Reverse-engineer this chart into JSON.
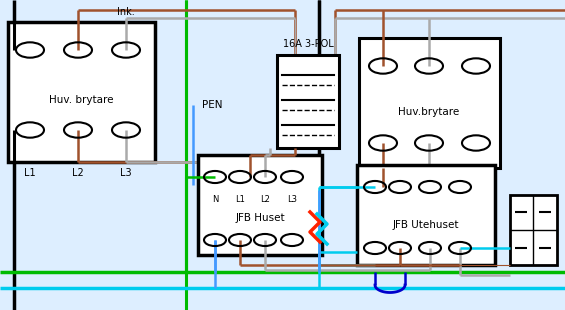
{
  "bg_color": "#ddeeff",
  "fig_w": 5.65,
  "fig_h": 3.1,
  "dpi": 100,
  "colors": {
    "black": "#000000",
    "brown": "#a0522d",
    "gray": "#aaaaaa",
    "green": "#00bb00",
    "blue": "#4499ff",
    "dark_blue": "#0000cc",
    "light_blue": "#00ccee",
    "red": "#ff2200",
    "white": "#ffffff"
  },
  "texts": {
    "ink": "Ink.",
    "pen": "PEN",
    "huv_left": "Huv. brytare",
    "huv_right": "Huv.brytare",
    "jfb_huset": "JFB Huset",
    "jfb_ute": "JFB Utehuset",
    "breaker": "16A 3-POL",
    "l1": "L1",
    "l2": "L2",
    "l3": "L3",
    "n": "N"
  }
}
